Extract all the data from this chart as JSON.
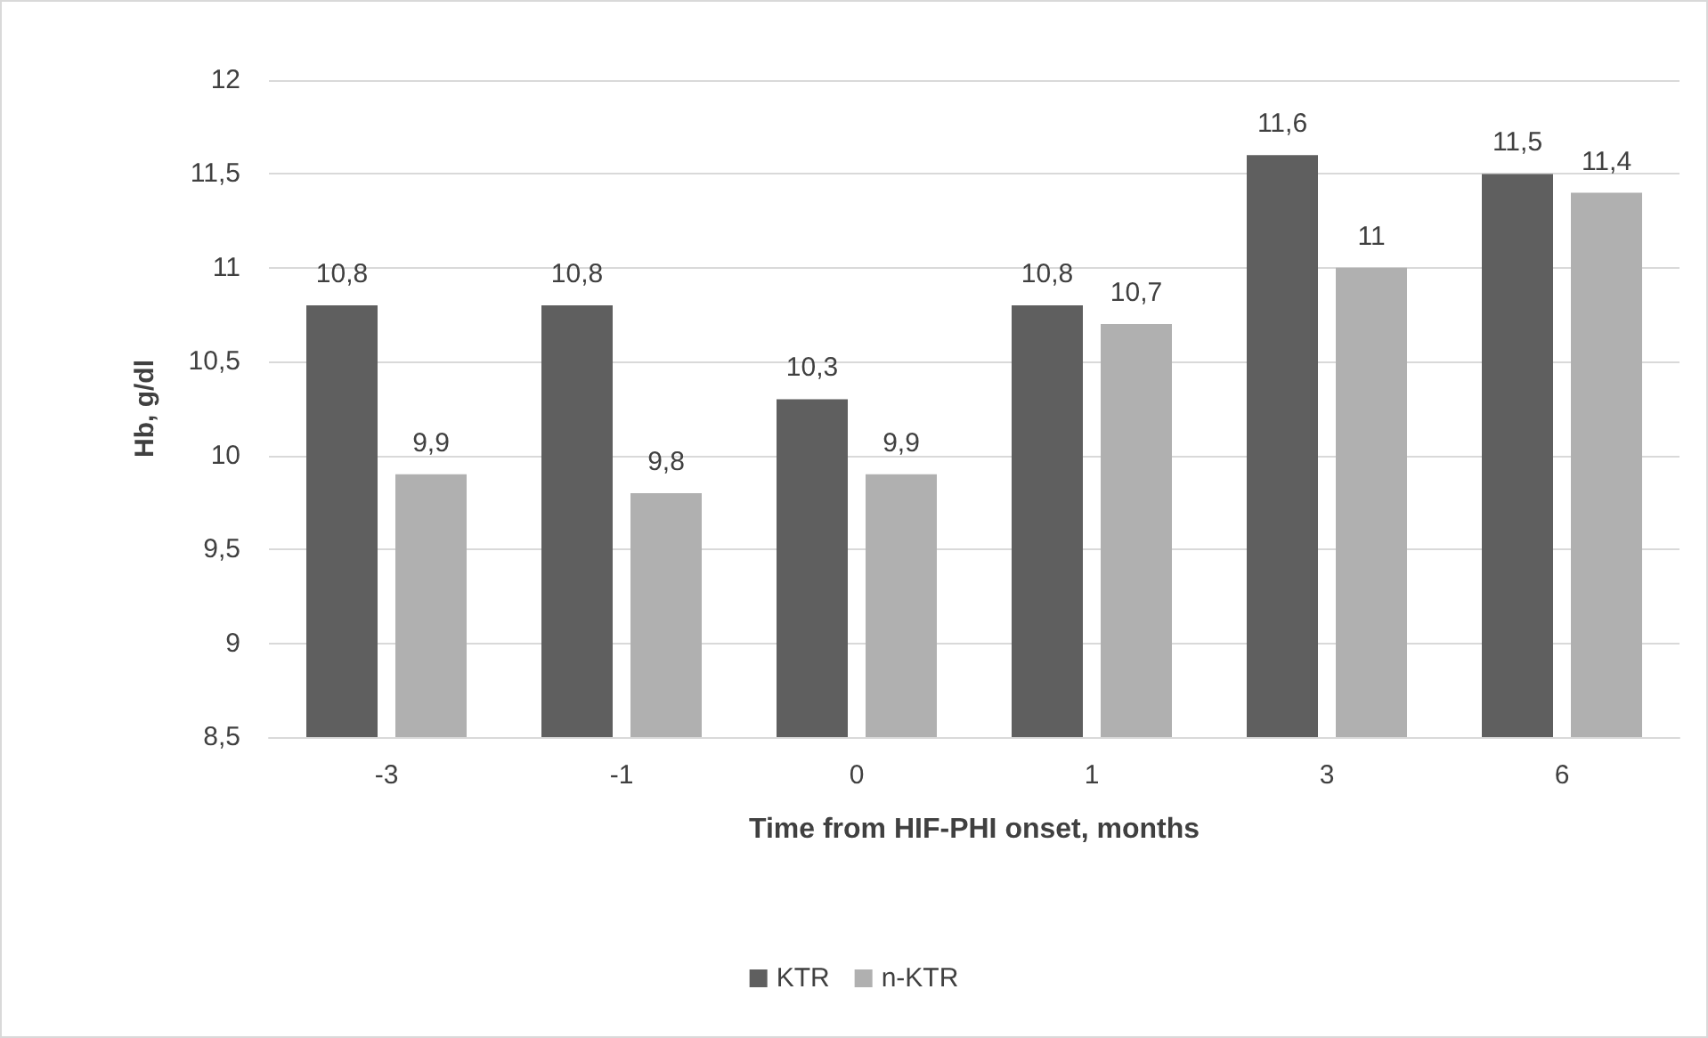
{
  "chart_data": {
    "type": "bar",
    "xlabel": "Time from HIF-PHI onset, months",
    "ylabel": "Hb, g/dl",
    "categories": [
      "-3",
      "-1",
      "0",
      "1",
      "3",
      "6"
    ],
    "series": [
      {
        "name": "KTR",
        "color": "#5f5f5f",
        "values": [
          10.8,
          10.8,
          10.3,
          10.8,
          11.6,
          11.5
        ],
        "value_labels": [
          "10,8",
          "10,8",
          "10,3",
          "10,8",
          "11,6",
          "11,5"
        ]
      },
      {
        "name": "n-KTR",
        "color": "#b0b0b0",
        "values": [
          9.9,
          9.8,
          9.9,
          10.7,
          11,
          11.4
        ],
        "value_labels": [
          "9,9",
          "9,8",
          "9,9",
          "10,7",
          "11",
          "11,4"
        ]
      }
    ],
    "ylim": [
      8.5,
      12
    ],
    "yticks": [
      {
        "value": 8.5,
        "label": "8,5"
      },
      9,
      {
        "value": 9.5,
        "label": "9,5"
      },
      10,
      {
        "value": 10.5,
        "label": "10,5"
      },
      11,
      {
        "value": 11.5,
        "label": "11,5"
      },
      12
    ],
    "grid": "y",
    "legend": "bottom"
  }
}
